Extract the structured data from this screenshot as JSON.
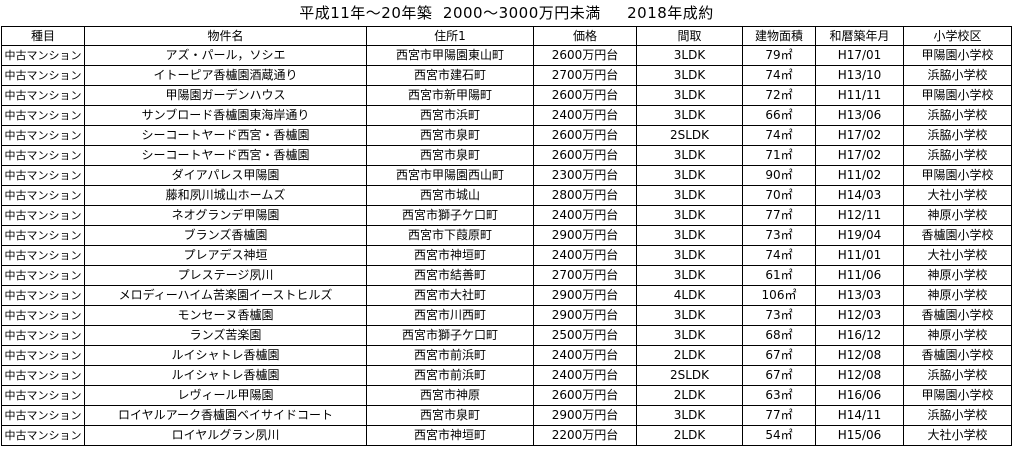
{
  "title": "平成11年～20年築  2000～3000万円未満     2018年成約",
  "columns": [
    "種目",
    "物件名",
    "住所1",
    "価格",
    "間取",
    "建物面積",
    "和暦築年月",
    "小学校区"
  ],
  "rows": [
    [
      "中古マンション",
      "アズ・パール，ソシエ",
      "西宮市甲陽園東山町",
      "2600万円台",
      "3LDK",
      "79㎡",
      "H17/01",
      "甲陽園小学校"
    ],
    [
      "中古マンション",
      "イトーピア香櫨園酒蔵通り",
      "西宮市建石町",
      "2700万円台",
      "3LDK",
      "74㎡",
      "H13/10",
      "浜脇小学校"
    ],
    [
      "中古マンション",
      "甲陽園ガーデンハウス",
      "西宮市新甲陽町",
      "2600万円台",
      "3LDK",
      "72㎡",
      "H11/11",
      "甲陽園小学校"
    ],
    [
      "中古マンション",
      "サンブロード香櫨園東海岸通り",
      "西宮市浜町",
      "2400万円台",
      "3LDK",
      "66㎡",
      "H13/06",
      "浜脇小学校"
    ],
    [
      "中古マンション",
      "シーコートヤード西宮・香櫨園",
      "西宮市泉町",
      "2600万円台",
      "2SLDK",
      "74㎡",
      "H17/02",
      "浜脇小学校"
    ],
    [
      "中古マンション",
      "シーコートヤード西宮・香櫨園",
      "西宮市泉町",
      "2600万円台",
      "3LDK",
      "71㎡",
      "H17/02",
      "浜脇小学校"
    ],
    [
      "中古マンション",
      "ダイアパレス甲陽園",
      "西宮市甲陽園西山町",
      "2300万円台",
      "3LDK",
      "90㎡",
      "H11/02",
      "甲陽園小学校"
    ],
    [
      "中古マンション",
      "藤和夙川城山ホームズ",
      "西宮市城山",
      "2800万円台",
      "3LDK",
      "70㎡",
      "H14/03",
      "大社小学校"
    ],
    [
      "中古マンション",
      "ネオグランデ甲陽園",
      "西宮市獅子ケ口町",
      "2400万円台",
      "3LDK",
      "77㎡",
      "H12/11",
      "神原小学校"
    ],
    [
      "中古マンション",
      "ブランズ香櫨園",
      "西宮市下葭原町",
      "2900万円台",
      "3LDK",
      "73㎡",
      "H19/04",
      "香櫨園小学校"
    ],
    [
      "中古マンション",
      "プレアデス神垣",
      "西宮市神垣町",
      "2400万円台",
      "3LDK",
      "74㎡",
      "H11/01",
      "大社小学校"
    ],
    [
      "中古マンション",
      "プレステージ夙川",
      "西宮市結善町",
      "2700万円台",
      "3LDK",
      "61㎡",
      "H11/06",
      "神原小学校"
    ],
    [
      "中古マンション",
      "メロディーハイム苦楽園イーストヒルズ",
      "西宮市大社町",
      "2900万円台",
      "4LDK",
      "106㎡",
      "H13/03",
      "神原小学校"
    ],
    [
      "中古マンション",
      "モンセーヌ香櫨園",
      "西宮市川西町",
      "2900万円台",
      "3LDK",
      "73㎡",
      "H12/03",
      "香櫨園小学校"
    ],
    [
      "中古マンション",
      "ランズ苦楽園",
      "西宮市獅子ケ口町",
      "2500万円台",
      "3LDK",
      "68㎡",
      "H16/12",
      "神原小学校"
    ],
    [
      "中古マンション",
      "ルイシャトレ香櫨園",
      "西宮市前浜町",
      "2400万円台",
      "2LDK",
      "67㎡",
      "H12/08",
      "香櫨園小学校"
    ],
    [
      "中古マンション",
      "ルイシャトレ香櫨園",
      "西宮市前浜町",
      "2400万円台",
      "2SLDK",
      "67㎡",
      "H12/08",
      "浜脇小学校"
    ],
    [
      "中古マンション",
      "レヴィール甲陽園",
      "西宮市神原",
      "2600万円台",
      "2LDK",
      "63㎡",
      "H16/06",
      "甲陽園小学校"
    ],
    [
      "中古マンション",
      "ロイヤルアーク香櫨園ベイサイドコート",
      "西宮市泉町",
      "2900万円台",
      "3LDK",
      "77㎡",
      "H14/11",
      "浜脇小学校"
    ],
    [
      "中古マンション",
      "ロイヤルグラン夙川",
      "西宮市神垣町",
      "2200万円台",
      "2LDK",
      "54㎡",
      "H15/06",
      "大社小学校"
    ]
  ]
}
